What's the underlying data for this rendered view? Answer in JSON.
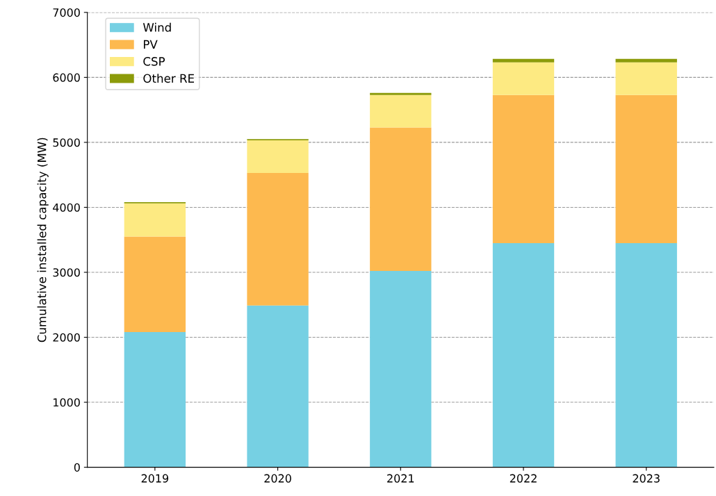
{
  "chart_data": {
    "type": "bar",
    "stacked": true,
    "ylabel": "Cumulative installed capacity (MW)",
    "categories": [
      "2019",
      "2020",
      "2021",
      "2022",
      "2023"
    ],
    "series": [
      {
        "name": "Wind",
        "color": "#76d0e3",
        "values": [
          2080,
          2490,
          3020,
          3450,
          3450
        ]
      },
      {
        "name": "PV",
        "color": "#fdb94f",
        "values": [
          1470,
          2040,
          2210,
          2280,
          2280
        ]
      },
      {
        "name": "CSP",
        "color": "#fdea82",
        "values": [
          510,
          500,
          500,
          500,
          500
        ]
      },
      {
        "name": "Other RE",
        "color": "#8c9b0a",
        "values": [
          20,
          20,
          30,
          55,
          55
        ]
      }
    ],
    "ylim": [
      0,
      7000
    ],
    "yticks": [
      0,
      1000,
      2000,
      3000,
      4000,
      5000,
      6000,
      7000
    ],
    "grid": "y",
    "legend": "top left"
  }
}
